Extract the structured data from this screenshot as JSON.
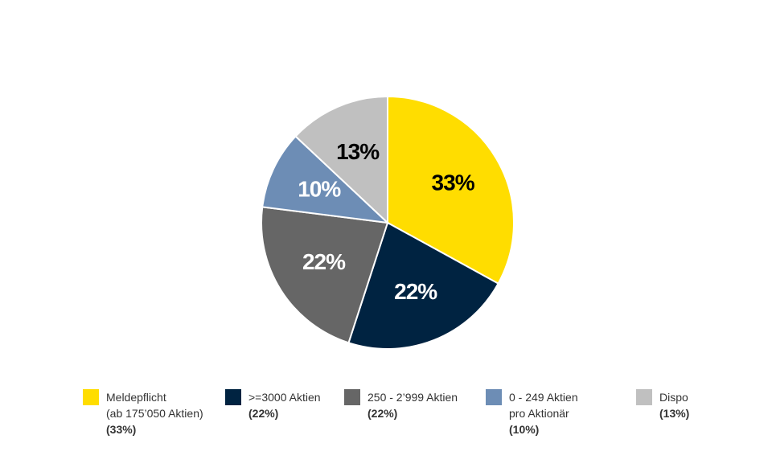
{
  "chart_data": {
    "type": "pie",
    "categories": [
      "Meldepflicht\n(ab 175’050 Aktien)",
      ">=3000 Aktien",
      "250 - 2’999 Aktien",
      "0 - 249 Aktien\npro Aktionär",
      "Dispo"
    ],
    "values": [
      33,
      22,
      22,
      10,
      13
    ],
    "value_labels": [
      "33%",
      "22%",
      "22%",
      "10%",
      "13%"
    ],
    "legend_value_labels": [
      "(33%)",
      "(22%)",
      "(22%)",
      "(10%)",
      "(13%)"
    ],
    "colors": [
      "#ffdd00",
      "#002341",
      "#666666",
      "#6d8db5",
      "#c0c0c0"
    ],
    "label_colors": [
      "#000000",
      "#ffffff",
      "#ffffff",
      "#ffffff",
      "#000000"
    ],
    "legend": "bottom"
  }
}
